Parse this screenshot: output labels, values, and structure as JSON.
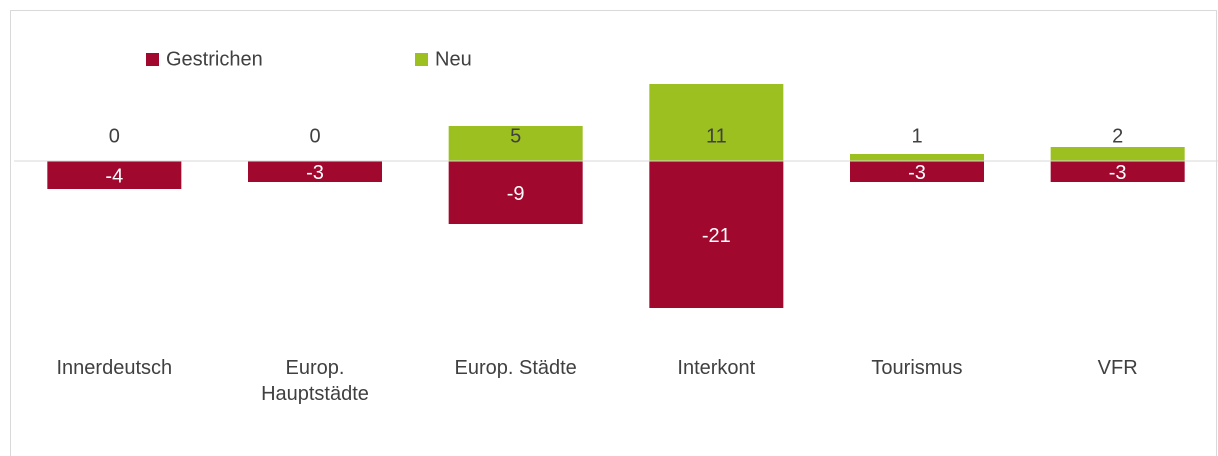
{
  "chart_data": {
    "type": "bar",
    "stacked": true,
    "categories": [
      "Innerdeutsch",
      "Europ. Hauptstädte",
      "Europ. Städte",
      "Interkont",
      "Tourismus",
      "VFR"
    ],
    "series": [
      {
        "name": "Gestrichen",
        "color": "#a0082e",
        "values": [
          -4,
          -3,
          -9,
          -21,
          -3,
          -3
        ]
      },
      {
        "name": "Neu",
        "color": "#9bc01f",
        "values": [
          0,
          0,
          5,
          11,
          1,
          2
        ]
      }
    ],
    "ylim": [
      -25,
      15
    ],
    "legend": "top-left"
  }
}
